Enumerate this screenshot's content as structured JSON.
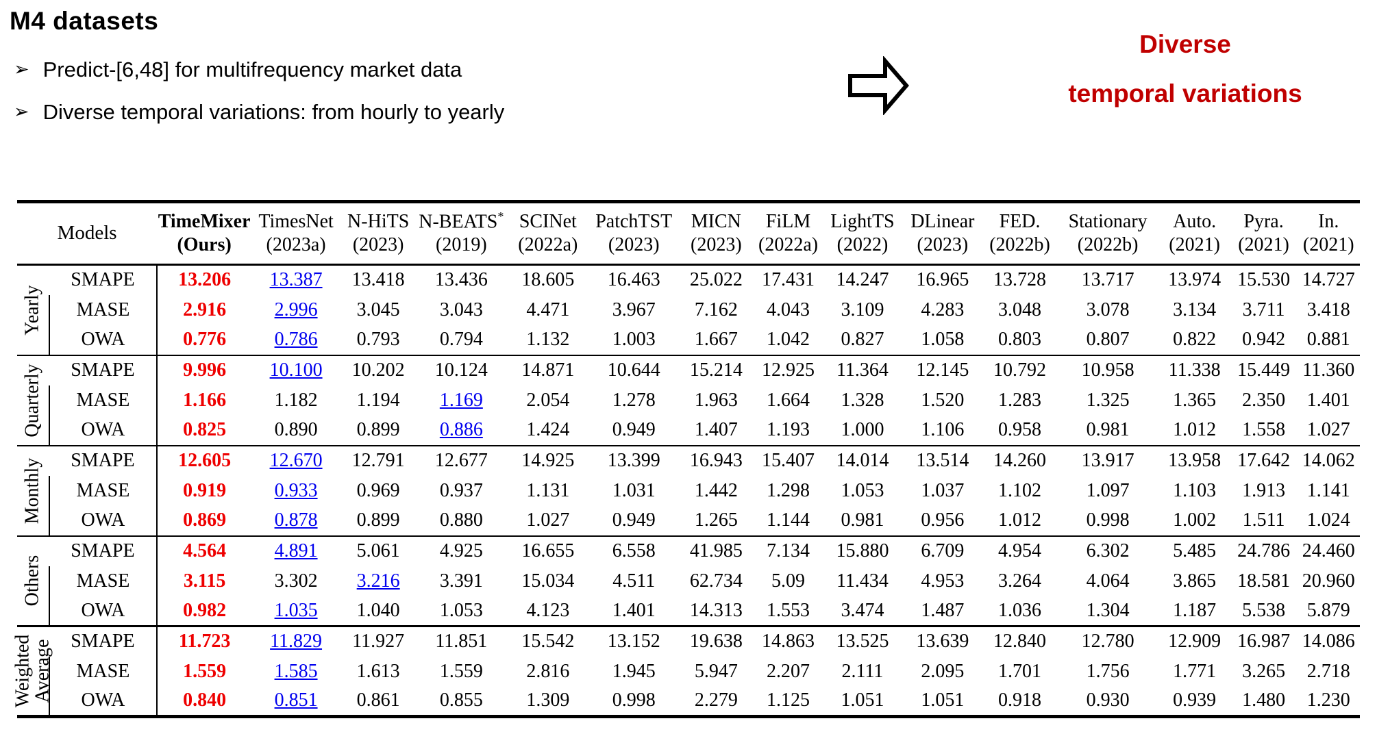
{
  "page": {
    "title": "M4 datasets",
    "bullet_glyph": "➢",
    "bullets": [
      "Predict-[6,48] for multifrequency market data",
      "Diverse temporal variations: from hourly to yearly"
    ],
    "callout": {
      "line1": "Diverse",
      "line2": "temporal variations",
      "color": "#c00000"
    }
  },
  "colors": {
    "best": "#ee0000",
    "second": "#0000ee"
  },
  "table": {
    "corner_label": "Models",
    "columns": [
      {
        "name": "TimeMixer",
        "year": "(Ours)",
        "bold": true
      },
      {
        "name": "TimesNet",
        "year": "(2023a)"
      },
      {
        "name": "N-HiTS",
        "year": "(2023)"
      },
      {
        "name": "N-BEATS*",
        "year": "(2019)"
      },
      {
        "name": "SCINet",
        "year": "(2022a)"
      },
      {
        "name": "PatchTST",
        "year": "(2023)"
      },
      {
        "name": "MICN",
        "year": "(2023)"
      },
      {
        "name": "FiLM",
        "year": "(2022a)"
      },
      {
        "name": "LightTS",
        "year": "(2022)"
      },
      {
        "name": "DLinear",
        "year": "(2023)"
      },
      {
        "name": "FED.",
        "year": "(2022b)"
      },
      {
        "name": "Stationary",
        "year": "(2022b)"
      },
      {
        "name": "Auto.",
        "year": "(2021)"
      },
      {
        "name": "Pyra.",
        "year": "(2021)"
      },
      {
        "name": "In.",
        "year": "(2021)"
      }
    ],
    "groups": [
      {
        "label": "Yearly",
        "rows": [
          {
            "metric": "SMAPE",
            "best": 0,
            "second": 1,
            "values": [
              "13.206",
              "13.387",
              "13.418",
              "13.436",
              "18.605",
              "16.463",
              "25.022",
              "17.431",
              "14.247",
              "16.965",
              "13.728",
              "13.717",
              "13.974",
              "15.530",
              "14.727"
            ]
          },
          {
            "metric": "MASE",
            "best": 0,
            "second": 1,
            "values": [
              "2.916",
              "2.996",
              "3.045",
              "3.043",
              "4.471",
              "3.967",
              "7.162",
              "4.043",
              "3.109",
              "4.283",
              "3.048",
              "3.078",
              "3.134",
              "3.711",
              "3.418"
            ]
          },
          {
            "metric": "OWA",
            "best": 0,
            "second": 1,
            "values": [
              "0.776",
              "0.786",
              "0.793",
              "0.794",
              "1.132",
              "1.003",
              "1.667",
              "1.042",
              "0.827",
              "1.058",
              "0.803",
              "0.807",
              "0.822",
              "0.942",
              "0.881"
            ]
          }
        ]
      },
      {
        "label": "Quarterly",
        "rows": [
          {
            "metric": "SMAPE",
            "best": 0,
            "second": 1,
            "values": [
              "9.996",
              "10.100",
              "10.202",
              "10.124",
              "14.871",
              "10.644",
              "15.214",
              "12.925",
              "11.364",
              "12.145",
              "10.792",
              "10.958",
              "11.338",
              "15.449",
              "11.360"
            ]
          },
          {
            "metric": "MASE",
            "best": 0,
            "second": 3,
            "values": [
              "1.166",
              "1.182",
              "1.194",
              "1.169",
              "2.054",
              "1.278",
              "1.963",
              "1.664",
              "1.328",
              "1.520",
              "1.283",
              "1.325",
              "1.365",
              "2.350",
              "1.401"
            ]
          },
          {
            "metric": "OWA",
            "best": 0,
            "second": 3,
            "values": [
              "0.825",
              "0.890",
              "0.899",
              "0.886",
              "1.424",
              "0.949",
              "1.407",
              "1.193",
              "1.000",
              "1.106",
              "0.958",
              "0.981",
              "1.012",
              "1.558",
              "1.027"
            ]
          }
        ]
      },
      {
        "label": "Monthly",
        "rows": [
          {
            "metric": "SMAPE",
            "best": 0,
            "second": 1,
            "values": [
              "12.605",
              "12.670",
              "12.791",
              "12.677",
              "14.925",
              "13.399",
              "16.943",
              "15.407",
              "14.014",
              "13.514",
              "14.260",
              "13.917",
              "13.958",
              "17.642",
              "14.062"
            ]
          },
          {
            "metric": "MASE",
            "best": 0,
            "second": 1,
            "values": [
              "0.919",
              "0.933",
              "0.969",
              "0.937",
              "1.131",
              "1.031",
              "1.442",
              "1.298",
              "1.053",
              "1.037",
              "1.102",
              "1.097",
              "1.103",
              "1.913",
              "1.141"
            ]
          },
          {
            "metric": "OWA",
            "best": 0,
            "second": 1,
            "values": [
              "0.869",
              "0.878",
              "0.899",
              "0.880",
              "1.027",
              "0.949",
              "1.265",
              "1.144",
              "0.981",
              "0.956",
              "1.012",
              "0.998",
              "1.002",
              "1.511",
              "1.024"
            ]
          }
        ]
      },
      {
        "label": "Others",
        "rows": [
          {
            "metric": "SMAPE",
            "best": 0,
            "second": 1,
            "values": [
              "4.564",
              "4.891",
              "5.061",
              "4.925",
              "16.655",
              "6.558",
              "41.985",
              "7.134",
              "15.880",
              "6.709",
              "4.954",
              "6.302",
              "5.485",
              "24.786",
              "24.460"
            ]
          },
          {
            "metric": "MASE",
            "best": 0,
            "second": 2,
            "values": [
              "3.115",
              "3.302",
              "3.216",
              "3.391",
              "15.034",
              "4.511",
              "62.734",
              "5.09",
              "11.434",
              "4.953",
              "3.264",
              "4.064",
              "3.865",
              "18.581",
              "20.960"
            ]
          },
          {
            "metric": "OWA",
            "best": 0,
            "second": 1,
            "values": [
              "0.982",
              "1.035",
              "1.040",
              "1.053",
              "4.123",
              "1.401",
              "14.313",
              "1.553",
              "3.474",
              "1.487",
              "1.036",
              "1.304",
              "1.187",
              "5.538",
              "5.879"
            ]
          }
        ]
      },
      {
        "label": "Weighted\nAverage",
        "rows": [
          {
            "metric": "SMAPE",
            "best": 0,
            "second": 1,
            "values": [
              "11.723",
              "11.829",
              "11.927",
              "11.851",
              "15.542",
              "13.152",
              "19.638",
              "14.863",
              "13.525",
              "13.639",
              "12.840",
              "12.780",
              "12.909",
              "16.987",
              "14.086"
            ]
          },
          {
            "metric": "MASE",
            "best": 0,
            "second": 1,
            "values": [
              "1.559",
              "1.585",
              "1.613",
              "1.559",
              "2.816",
              "1.945",
              "5.947",
              "2.207",
              "2.111",
              "2.095",
              "1.701",
              "1.756",
              "1.771",
              "3.265",
              "2.718"
            ]
          },
          {
            "metric": "OWA",
            "best": 0,
            "second": 1,
            "values": [
              "0.840",
              "0.851",
              "0.861",
              "0.855",
              "1.309",
              "0.998",
              "2.279",
              "1.125",
              "1.051",
              "1.051",
              "0.918",
              "0.930",
              "0.939",
              "1.480",
              "1.230"
            ]
          }
        ]
      }
    ]
  }
}
